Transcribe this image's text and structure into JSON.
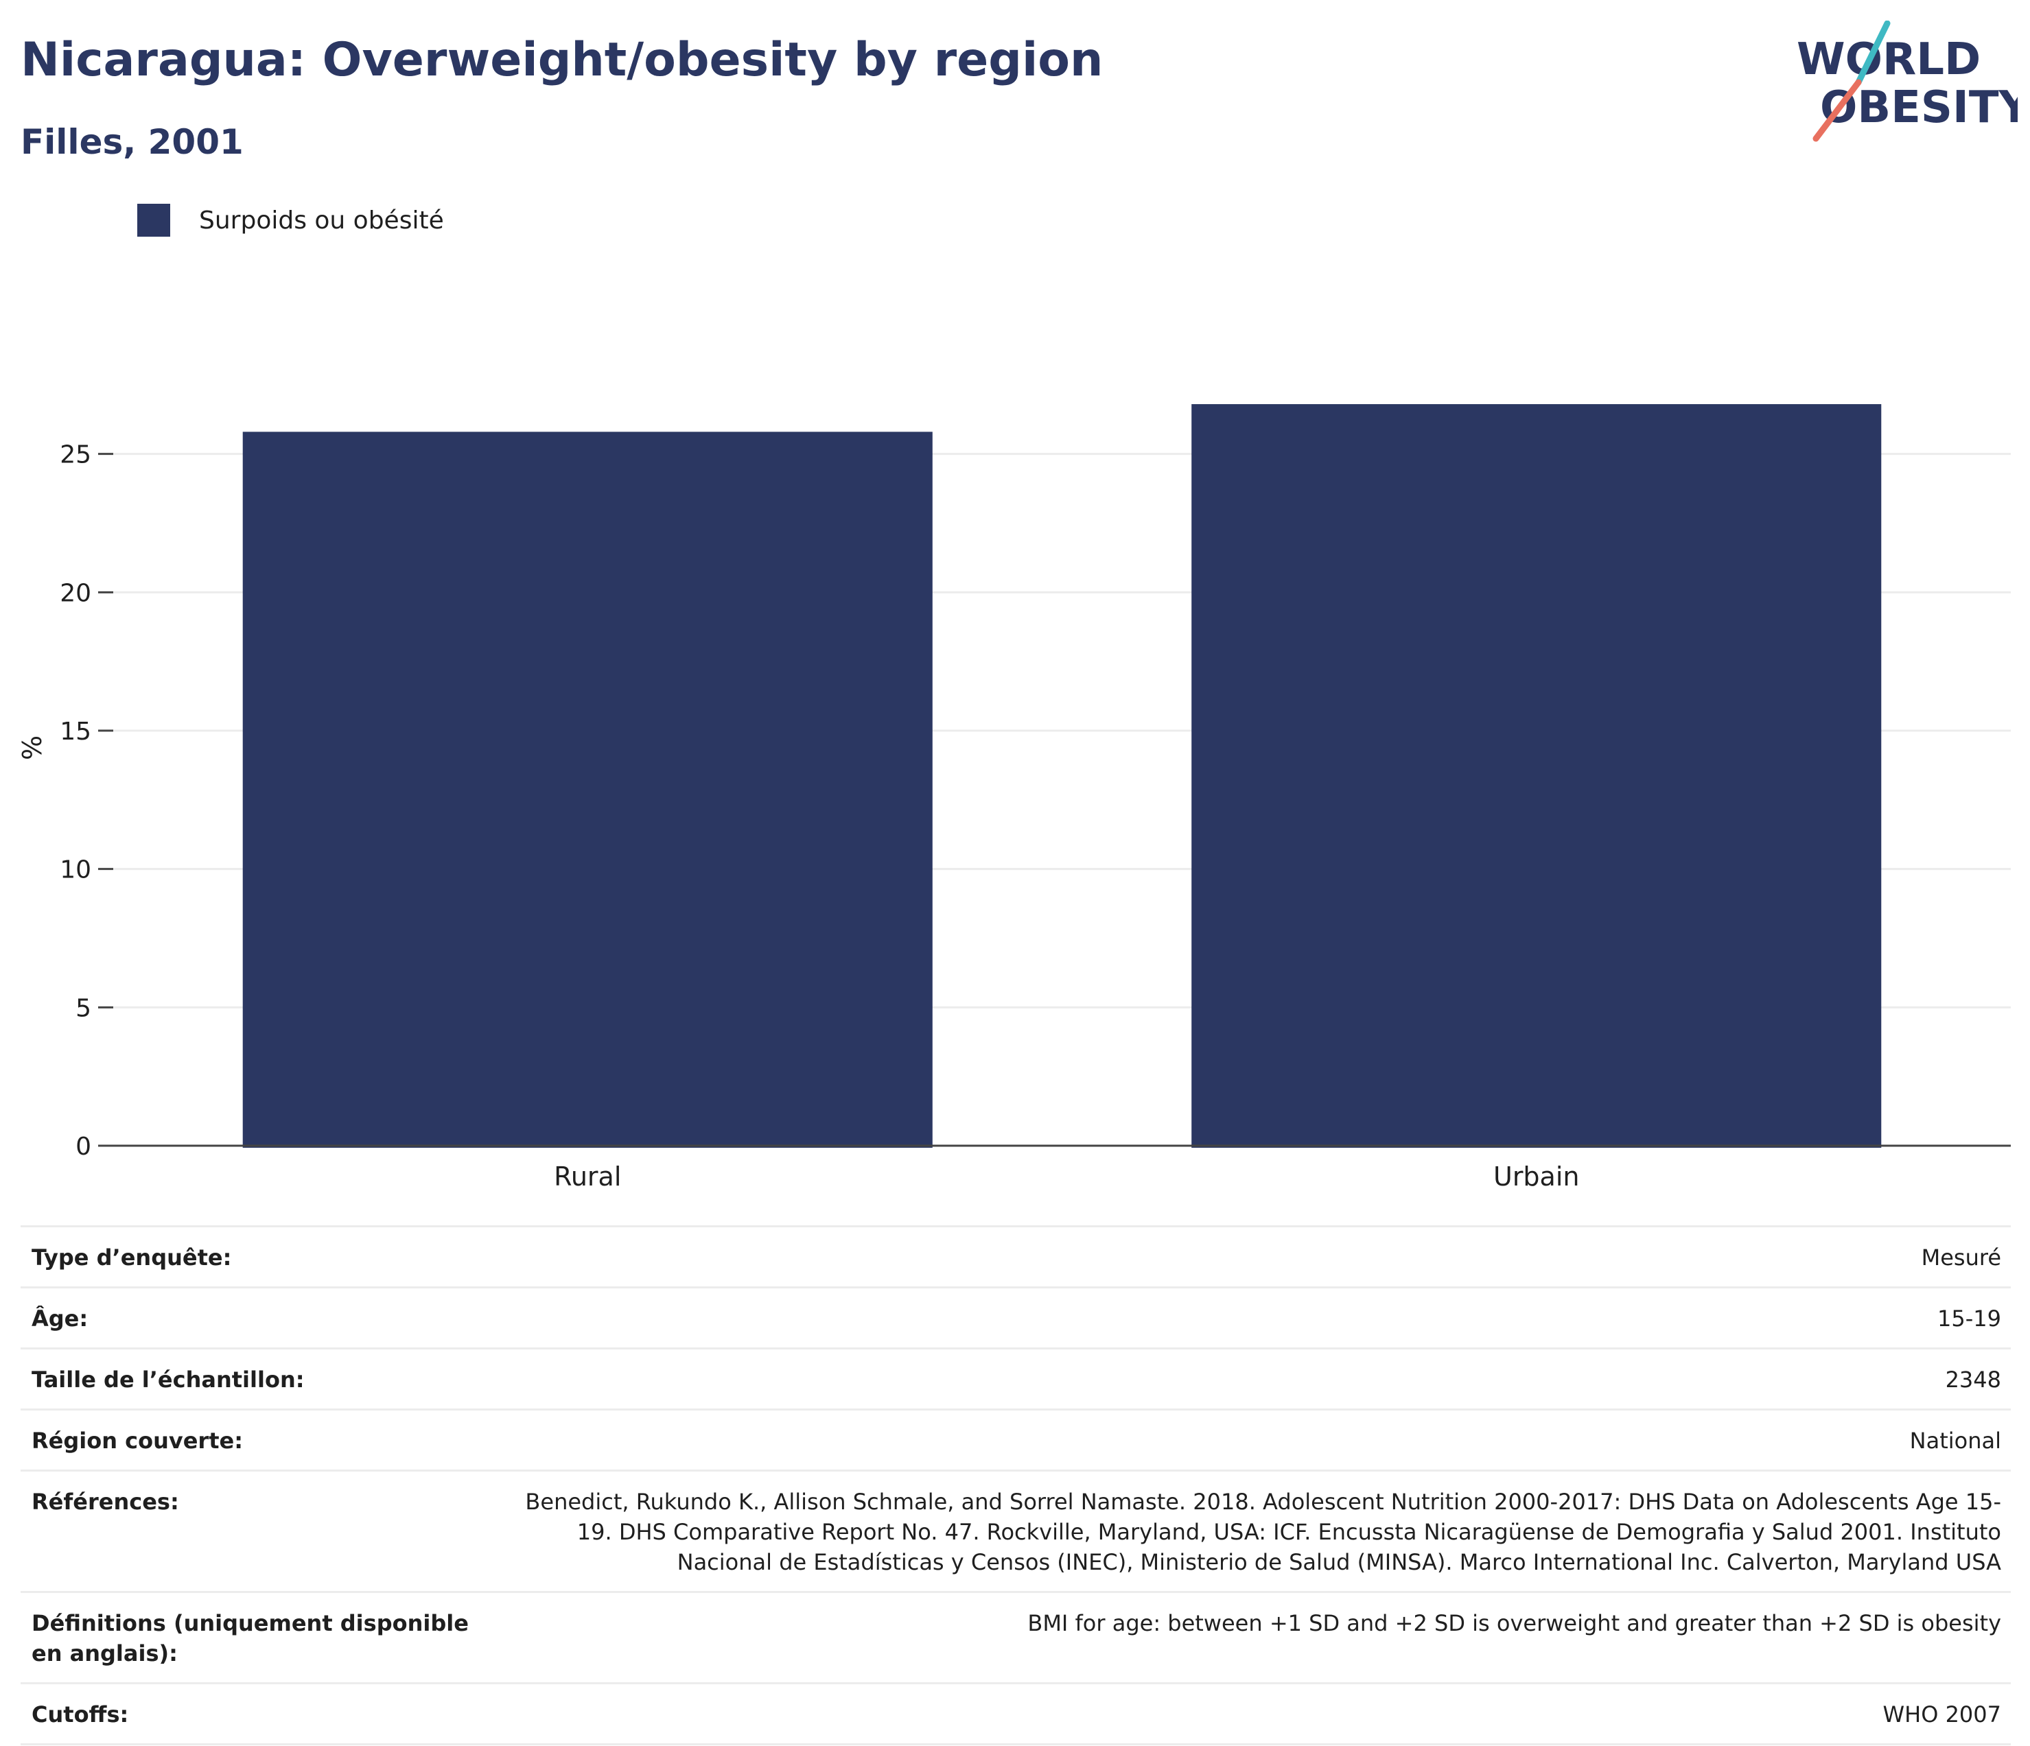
{
  "header": {
    "title": "Nicaragua: Overweight/obesity by region",
    "subtitle": "Filles, 2001"
  },
  "logo": {
    "line1": "WORLD",
    "line2": "OBESITY"
  },
  "colors": {
    "bar": "#2b3762",
    "grid": "#ececec",
    "axis": "#444444",
    "logo_teal": "#3fb9c3",
    "logo_coral": "#e8705f"
  },
  "chart_data": {
    "type": "bar",
    "categories": [
      "Rural",
      "Urbain"
    ],
    "series": [
      {
        "name": "Surpoids ou obésité",
        "values": [
          25.8,
          26.8
        ]
      }
    ],
    "ylabel": "%",
    "yticks": [
      0,
      5,
      10,
      15,
      20,
      25
    ],
    "ylim": [
      0,
      30
    ],
    "grid": true,
    "legend_position": "top-left"
  },
  "info": [
    {
      "key": "Type d’enquête:",
      "value": "Mesuré"
    },
    {
      "key": "Âge:",
      "value": "15-19"
    },
    {
      "key": "Taille de l’échantillon:",
      "value": "2348"
    },
    {
      "key": "Région couverte:",
      "value": "National"
    },
    {
      "key": "Références:",
      "value": "Benedict, Rukundo K., Allison Schmale, and Sorrel Namaste. 2018. Adolescent Nutrition 2000-2017: DHS Data on Adolescents Age 15-19. DHS Comparative Report No. 47. Rockville, Maryland, USA: ICF. Encussta Nicaragüense de Demografia y Salud 2001. Instituto Nacional de Estadísticas y Censos (INEC), Ministerio de Salud (MINSA). Marco International Inc. Calverton, Maryland USA"
    },
    {
      "key": "Définitions (uniquement disponible en anglais):",
      "value": "BMI for age: between +1 SD and +2 SD is overweight and greater than +2 SD is obesity"
    },
    {
      "key": "Cutoffs:",
      "value": "WHO 2007"
    }
  ]
}
